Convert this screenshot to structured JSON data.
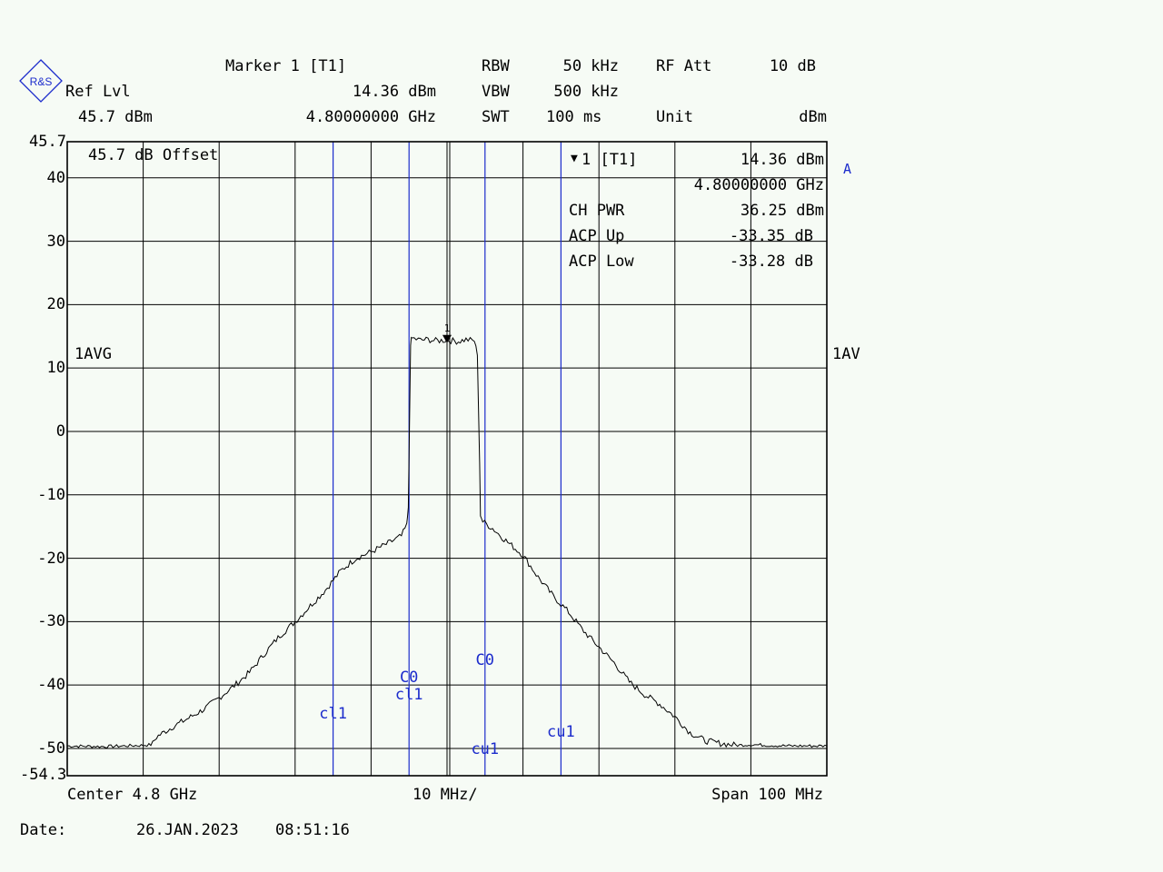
{
  "header": {
    "marker_title": "Marker 1 [T1]",
    "ref_lvl_label": "Ref Lvl",
    "ref_lvl_value": "45.7 dBm",
    "marker_level": "14.36 dBm",
    "marker_freq": "4.80000000 GHz",
    "rbw_label": "RBW",
    "rbw_value": "50 kHz",
    "vbw_label": "VBW",
    "vbw_value": "500 kHz",
    "swt_label": "SWT",
    "swt_value": "100 ms",
    "rfatt_label": "RF Att",
    "rfatt_value": "10 dB",
    "unit_label": "Unit",
    "unit_value": "dBm"
  },
  "logo_text": "R&S",
  "left_labels": {
    "offset": "45.7 dB Offset",
    "avg": "1AVG"
  },
  "right_labels": {
    "trace_a": "A",
    "avg": "1AV"
  },
  "info_box": {
    "marker_line_label": "1 [T1]",
    "marker_line_value": "14.36 dBm",
    "marker_freq": "4.80000000 GHz",
    "ch_pwr_label": "CH PWR",
    "ch_pwr_value": "36.25 dBm",
    "acp_up_label": "ACP Up",
    "acp_up_value": "-33.35 dB",
    "acp_low_label": "ACP Low",
    "acp_low_value": "-33.28 dB"
  },
  "footer": {
    "center": "Center 4.8 GHz",
    "div": "10 MHz/",
    "span": "Span 100 MHz",
    "date_label": "Date:",
    "date_value": "26.JAN.2023",
    "time_value": "08:51:16"
  },
  "colors": {
    "background": "#f6fbf5",
    "grid": "#000000",
    "channel_lines": "#1c2ccc",
    "trace": "#000000"
  },
  "chart_data": {
    "type": "line",
    "x_unit": "MHz offset from center",
    "xlim": [
      -50,
      50
    ],
    "ylim": [
      -54.3,
      45.7
    ],
    "y_top_label": "45.7",
    "y_bottom_label": "-54.3",
    "y_ticks": [
      {
        "v": 40,
        "label": "40"
      },
      {
        "v": 30,
        "label": "30"
      },
      {
        "v": 20,
        "label": "20"
      },
      {
        "v": 10,
        "label": "10"
      },
      {
        "v": 0,
        "label": "0"
      },
      {
        "v": -10,
        "label": "-10"
      },
      {
        "v": -20,
        "label": "-20"
      },
      {
        "v": -30,
        "label": "-30"
      },
      {
        "v": -40,
        "label": "-40"
      },
      {
        "v": -50,
        "label": "-50"
      }
    ],
    "x_grid": [
      -40,
      -30,
      -20,
      -10,
      0,
      10,
      20,
      30,
      40
    ],
    "marker": {
      "x": 0,
      "y": 14.36,
      "label": "1"
    },
    "channel_lines": [
      {
        "x": -15,
        "label": "cl1",
        "label_y": -44.5
      },
      {
        "x": -5,
        "label": "C0",
        "label_y": -38.8
      },
      {
        "x": -5,
        "label": "cl1",
        "label_y": -41.6
      },
      {
        "x": 5,
        "label": "C0",
        "label_y": -36.1
      },
      {
        "x": 5,
        "label": "cu1",
        "label_y": -50.2
      },
      {
        "x": 15,
        "label": "cu1",
        "label_y": -47.4
      }
    ],
    "series": [
      {
        "points": [
          [
            -50,
            -49.6
          ],
          [
            -45,
            -49.7
          ],
          [
            -40,
            -49.5
          ],
          [
            -39,
            -49.4
          ],
          [
            -38,
            -48.0
          ],
          [
            -36,
            -46.5
          ],
          [
            -34,
            -45.2
          ],
          [
            -32,
            -43.8
          ],
          [
            -30,
            -42.0
          ],
          [
            -28,
            -40.1
          ],
          [
            -26,
            -38.0
          ],
          [
            -24,
            -35.0
          ],
          [
            -22,
            -32.2
          ],
          [
            -20,
            -30.0
          ],
          [
            -18,
            -27.5
          ],
          [
            -16,
            -25.0
          ],
          [
            -14,
            -22.0
          ],
          [
            -12,
            -20.0
          ],
          [
            -10,
            -19.0
          ],
          [
            -8,
            -17.8
          ],
          [
            -6,
            -16.5
          ],
          [
            -5.3,
            -14.8
          ],
          [
            -5.1,
            -12.0
          ],
          [
            -4.8,
            14.0
          ],
          [
            -4.6,
            14.7
          ],
          [
            -3.5,
            14.4
          ],
          [
            -2.5,
            14.5
          ],
          [
            -1.5,
            14.3
          ],
          [
            0,
            14.4
          ],
          [
            1.5,
            14.2
          ],
          [
            2.5,
            14.5
          ],
          [
            3.6,
            14.3
          ],
          [
            4.0,
            12.0
          ],
          [
            4.3,
            -5.0
          ],
          [
            4.4,
            -13.0
          ],
          [
            4.7,
            -14.2
          ],
          [
            6,
            -15.3
          ],
          [
            8,
            -17.5
          ],
          [
            10,
            -19.5
          ],
          [
            12,
            -23.0
          ],
          [
            14,
            -26.0
          ],
          [
            16,
            -28.5
          ],
          [
            18,
            -31.5
          ],
          [
            20,
            -34.0
          ],
          [
            22,
            -36.5
          ],
          [
            24,
            -39.5
          ],
          [
            26,
            -41.5
          ],
          [
            28,
            -43.0
          ],
          [
            30,
            -45.0
          ],
          [
            32,
            -47.5
          ],
          [
            34,
            -48.8
          ],
          [
            36,
            -49.2
          ],
          [
            38,
            -49.5
          ],
          [
            40,
            -49.4
          ],
          [
            45,
            -49.6
          ],
          [
            50,
            -49.6
          ]
        ]
      }
    ]
  }
}
